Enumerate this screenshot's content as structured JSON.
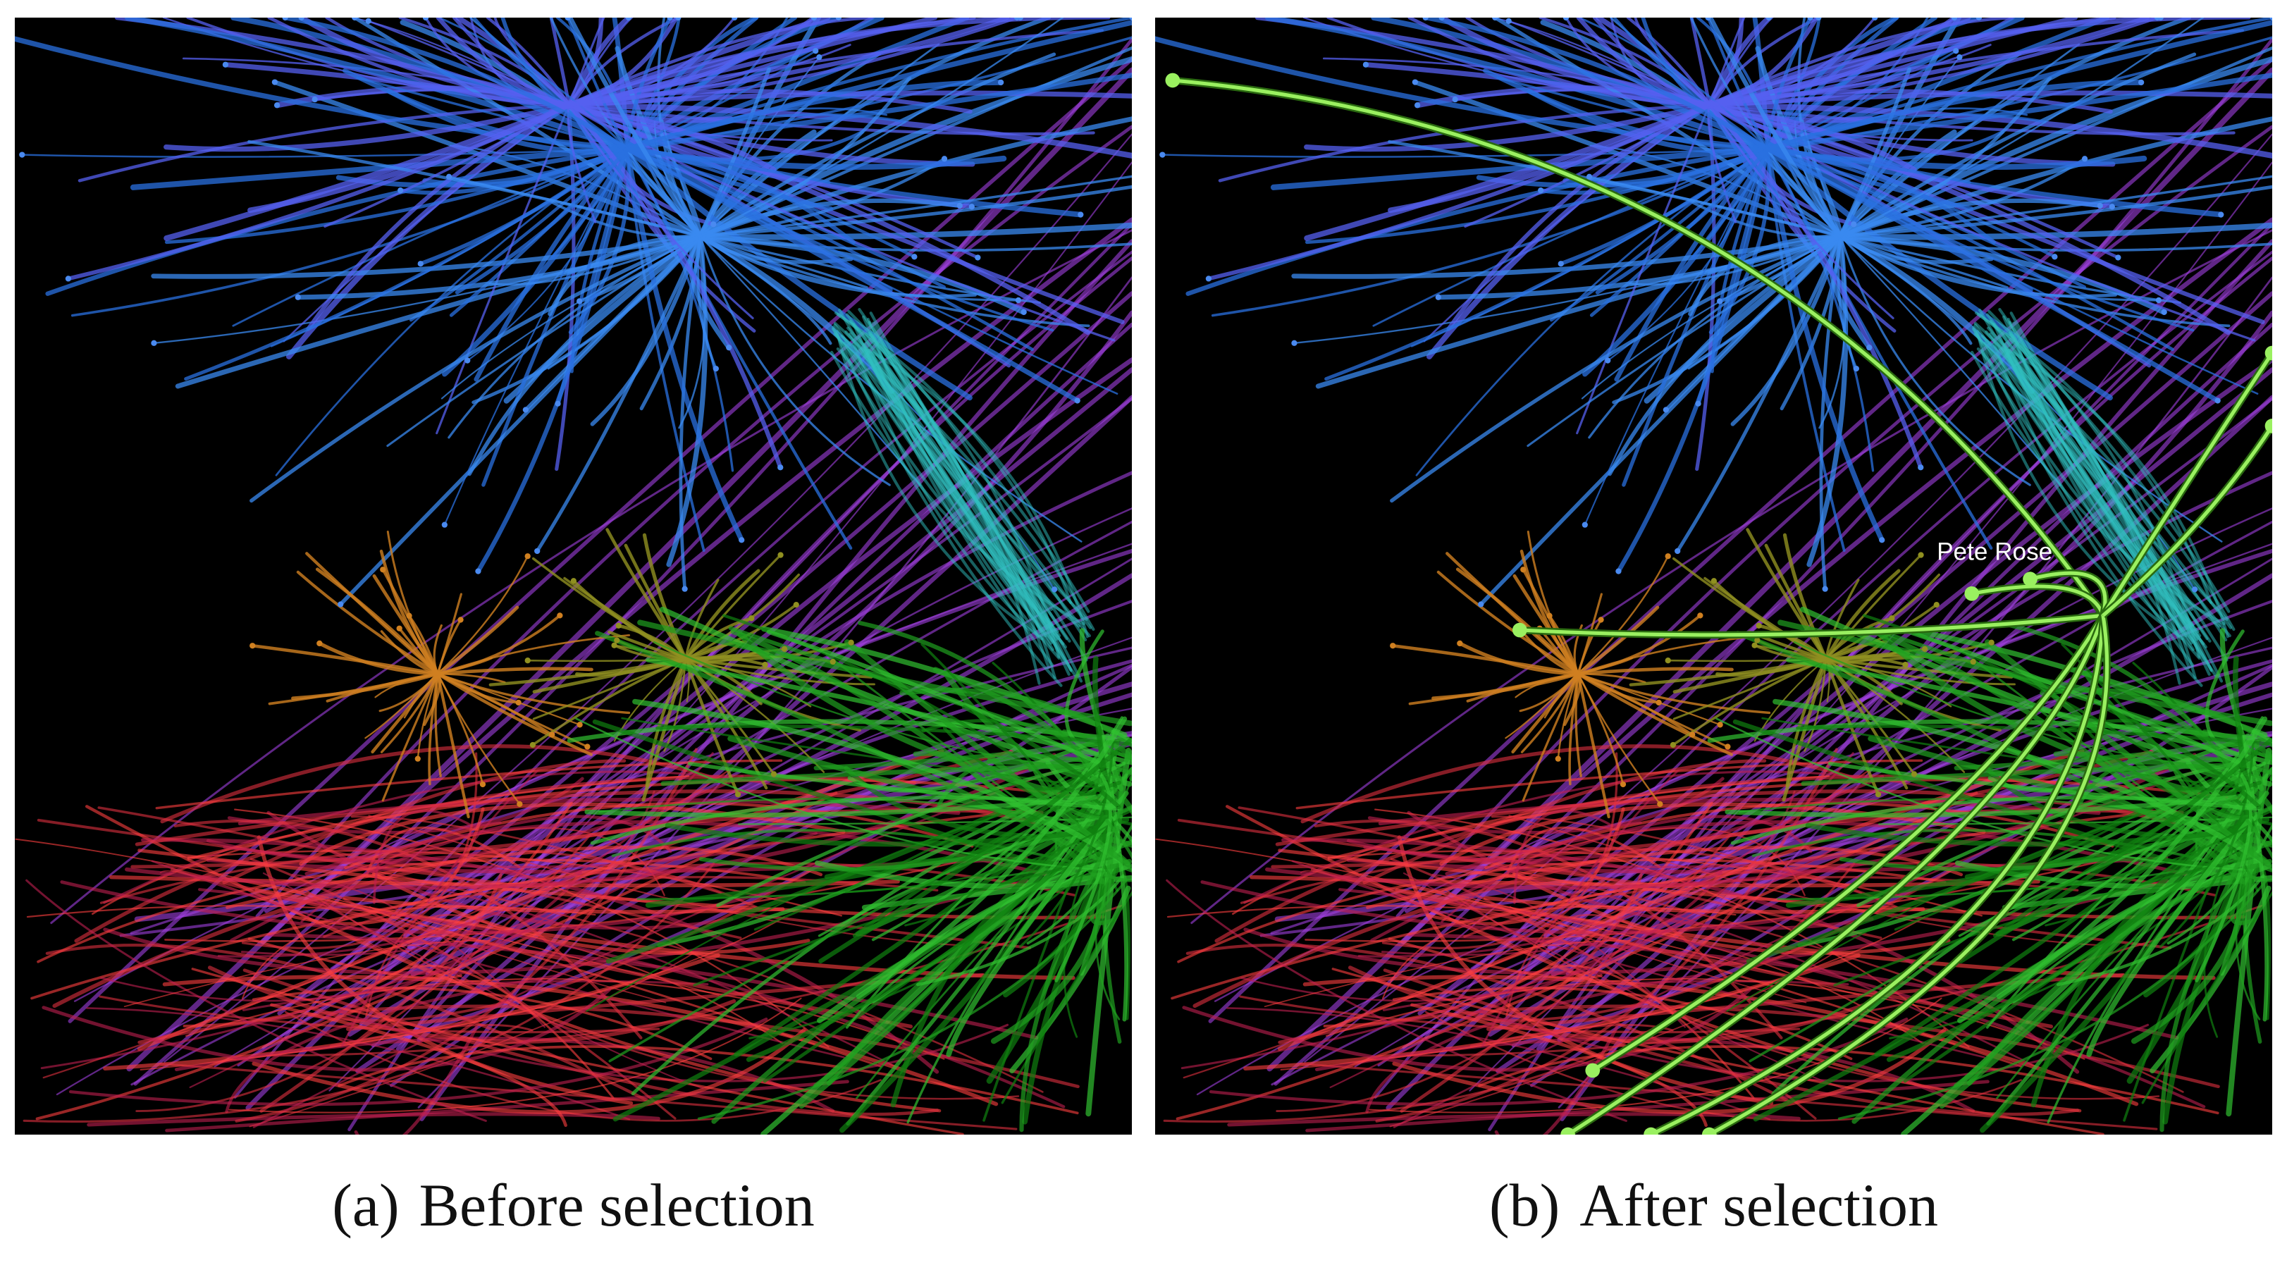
{
  "panels": [
    {
      "label": "(a)",
      "caption": "Before selection"
    },
    {
      "label": "(b)",
      "caption": "After selection",
      "node_label": "Pete Rose"
    }
  ]
}
